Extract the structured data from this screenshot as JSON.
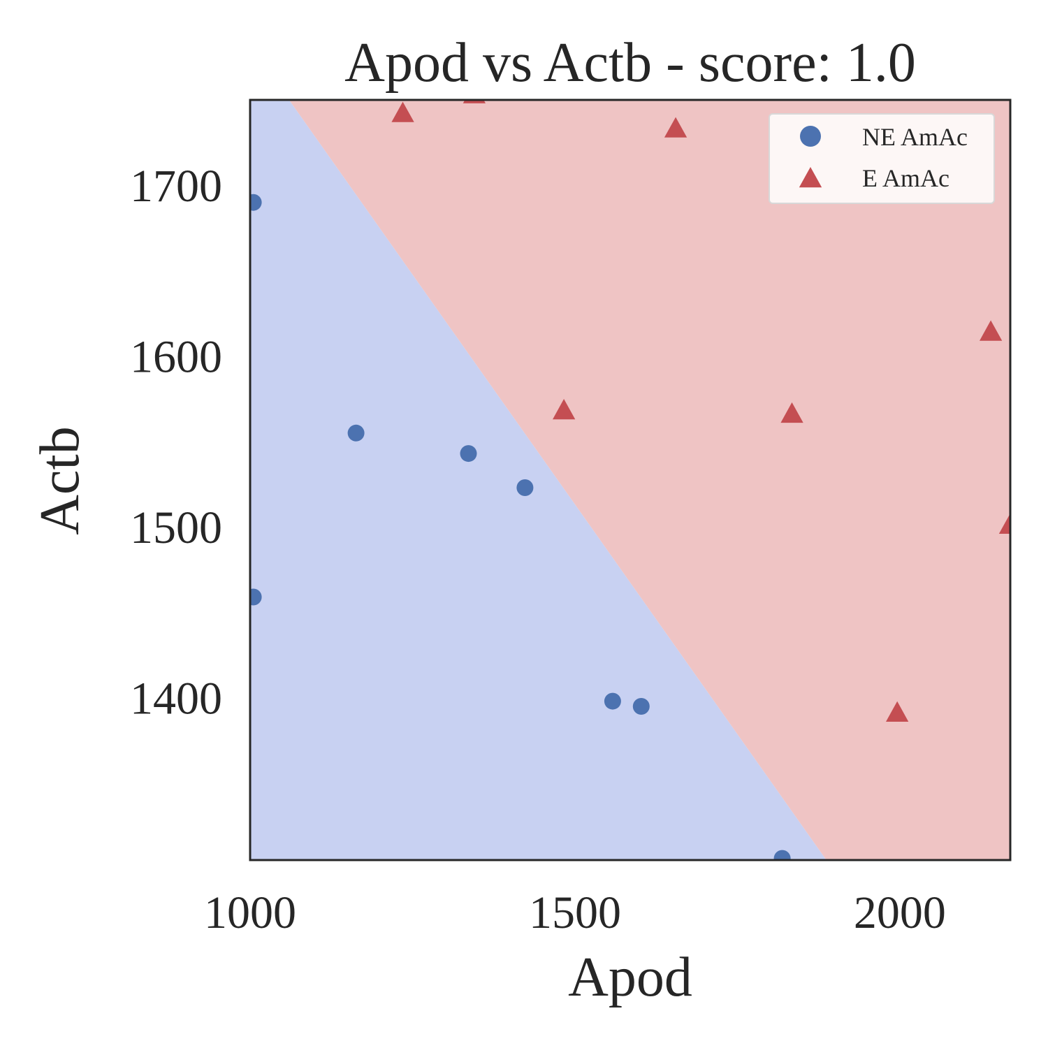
{
  "chart_data": {
    "type": "scatter",
    "title": "Apod vs Actb - score: 1.0",
    "xlabel": "Apod",
    "ylabel": "Actb",
    "xlim": [
      1000,
      2170
    ],
    "ylim": [
      1305,
      1750
    ],
    "xticks": [
      1000,
      1500,
      2000
    ],
    "yticks": [
      1400,
      1500,
      1600,
      1700
    ],
    "grid": false,
    "legend_position": "top-right",
    "decision_boundary": {
      "points": [
        [
          1060,
          1750
        ],
        [
          1887,
          1305
        ]
      ],
      "region_colors": {
        "NE AmAc": "#c8d1f2",
        "E AmAc": "#efc4c4"
      }
    },
    "series": [
      {
        "name": "NE AmAc",
        "marker": "circle",
        "color": "#4c72b0",
        "points": [
          {
            "x": 1005,
            "y": 1690
          },
          {
            "x": 1163,
            "y": 1555
          },
          {
            "x": 1336,
            "y": 1543
          },
          {
            "x": 1423,
            "y": 1523
          },
          {
            "x": 1558,
            "y": 1398
          },
          {
            "x": 1602,
            "y": 1395
          },
          {
            "x": 1005,
            "y": 1459
          },
          {
            "x": 1819,
            "y": 1306
          }
        ]
      },
      {
        "name": "E AmAc",
        "marker": "triangle",
        "color": "#c44e52",
        "points": [
          {
            "x": 1235,
            "y": 1742
          },
          {
            "x": 1345,
            "y": 1753
          },
          {
            "x": 1655,
            "y": 1733
          },
          {
            "x": 1483,
            "y": 1568
          },
          {
            "x": 1834,
            "y": 1566
          },
          {
            "x": 1996,
            "y": 1391
          },
          {
            "x": 2140,
            "y": 1614
          },
          {
            "x": 2170,
            "y": 1501
          }
        ]
      }
    ]
  }
}
